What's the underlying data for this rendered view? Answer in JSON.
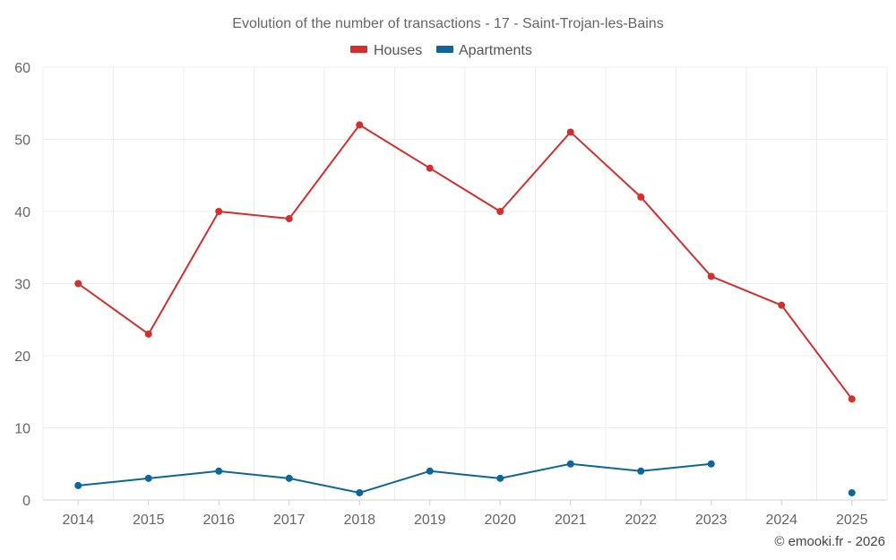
{
  "chart_data": {
    "type": "line",
    "title": "Evolution of the number of transactions - 17 - Saint-Trojan-les-Bains",
    "categories": [
      "2014",
      "2015",
      "2016",
      "2017",
      "2018",
      "2019",
      "2020",
      "2021",
      "2022",
      "2023",
      "2024",
      "2025"
    ],
    "y_ticks": [
      "0",
      "10",
      "20",
      "30",
      "40",
      "50",
      "60"
    ],
    "ylim": [
      0,
      60
    ],
    "grid": true,
    "legend_position": "top-center",
    "series": [
      {
        "name": "Houses",
        "color": "#d32f2f",
        "values": [
          30,
          23,
          40,
          39,
          52,
          46,
          40,
          51,
          42,
          31,
          27,
          14
        ]
      },
      {
        "name": "Apartments",
        "color": "#0d6699",
        "values": [
          2,
          3,
          4,
          3,
          1,
          4,
          3,
          5,
          4,
          5,
          null,
          1
        ]
      }
    ]
  },
  "credit": "© emooki.fr - 2026"
}
